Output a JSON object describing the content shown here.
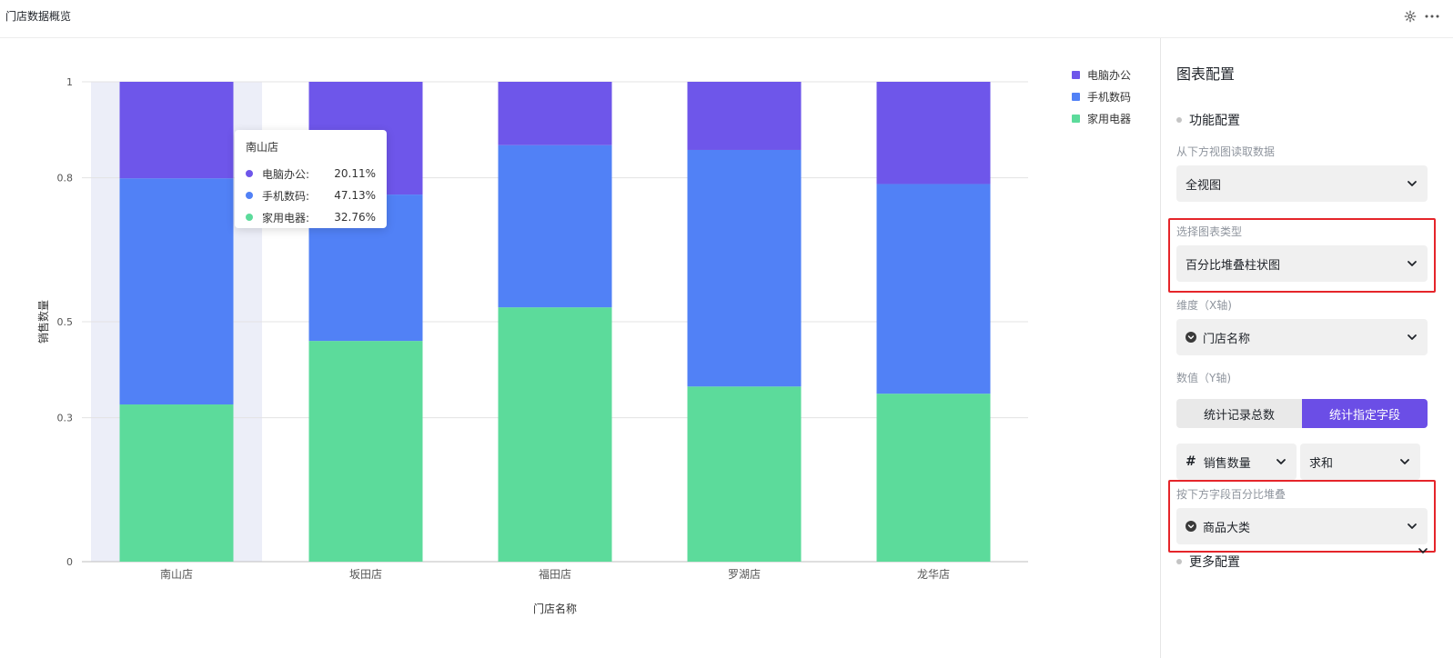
{
  "header": {
    "title": "门店数据概览"
  },
  "icons": {
    "settings": "gear-icon",
    "more": "ellipsis-icon"
  },
  "chart_data": {
    "type": "bar",
    "stacked": "percent",
    "categories": [
      "南山店",
      "坂田店",
      "福田店",
      "罗湖店",
      "龙华店"
    ],
    "series": [
      {
        "name": "家用电器",
        "color": "#5cdb9b",
        "values": [
          0.3276,
          0.46,
          0.53,
          0.365,
          0.35
        ]
      },
      {
        "name": "手机数码",
        "color": "#5181f6",
        "values": [
          0.4713,
          0.305,
          0.338,
          0.493,
          0.437
        ]
      },
      {
        "name": "电脑办公",
        "color": "#6e56ea",
        "values": [
          0.2011,
          0.235,
          0.132,
          0.142,
          0.213
        ]
      }
    ],
    "legend_order": [
      "电脑办公",
      "手机数码",
      "家用电器"
    ],
    "yticks": [
      "0",
      "0.3",
      "0.5",
      "0.8",
      "1"
    ],
    "ytick_values": [
      0,
      0.3,
      0.5,
      0.8,
      1
    ],
    "ylim": [
      0,
      1
    ],
    "xlabel": "门店名称",
    "ylabel": "销售数量",
    "grid": true,
    "legend_position": "top-right",
    "highlight_category": "南山店"
  },
  "tooltip": {
    "title": "南山店",
    "rows": [
      {
        "label": "电脑办公:",
        "value": "20.11%",
        "color": "#6e56ea"
      },
      {
        "label": "手机数码:",
        "value": "47.13%",
        "color": "#5181f6"
      },
      {
        "label": "家用电器:",
        "value": "32.76%",
        "color": "#5cdb9b"
      }
    ]
  },
  "panel": {
    "title": "图表配置",
    "function_section": "功能配置",
    "source_label": "从下方视图读取数据",
    "source_value": "全视图",
    "chart_type_label": "选择图表类型",
    "chart_type_value": "百分比堆叠柱状图",
    "dimension_label": "维度（X轴)",
    "dimension_value": "门店名称",
    "value_label": "数值（Y轴)",
    "toggle_left": "统计记录总数",
    "toggle_right": "统计指定字段",
    "field_value": "销售数量",
    "agg_value": "求和",
    "stack_label": "按下方字段百分比堆叠",
    "stack_value": "商品大类",
    "more_section": "更多配置",
    "accent_color": "#6b4ee6"
  }
}
